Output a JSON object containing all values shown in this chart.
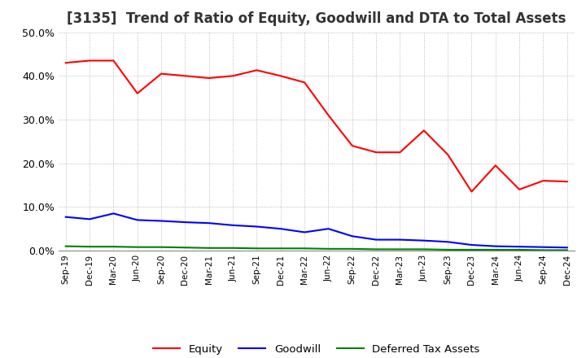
{
  "title": "[3135]  Trend of Ratio of Equity, Goodwill and DTA to Total Assets",
  "x_labels": [
    "Sep-19",
    "Dec-19",
    "Mar-20",
    "Jun-20",
    "Sep-20",
    "Dec-20",
    "Mar-21",
    "Jun-21",
    "Sep-21",
    "Dec-21",
    "Mar-22",
    "Jun-22",
    "Sep-22",
    "Dec-22",
    "Mar-23",
    "Jun-23",
    "Sep-23",
    "Dec-23",
    "Mar-24",
    "Jun-24",
    "Sep-24",
    "Dec-24"
  ],
  "equity": [
    0.43,
    0.435,
    0.435,
    0.36,
    0.405,
    0.4,
    0.395,
    0.4,
    0.413,
    0.4,
    0.385,
    0.31,
    0.24,
    0.225,
    0.225,
    0.275,
    0.22,
    0.135,
    0.195,
    0.14,
    0.16,
    0.158
  ],
  "goodwill": [
    0.077,
    0.072,
    0.085,
    0.07,
    0.068,
    0.065,
    0.063,
    0.058,
    0.055,
    0.05,
    0.042,
    0.05,
    0.033,
    0.025,
    0.025,
    0.023,
    0.02,
    0.013,
    0.01,
    0.009,
    0.008,
    0.007
  ],
  "dta": [
    0.01,
    0.009,
    0.009,
    0.008,
    0.008,
    0.007,
    0.006,
    0.006,
    0.005,
    0.005,
    0.005,
    0.004,
    0.004,
    0.003,
    0.003,
    0.003,
    0.002,
    0.002,
    0.002,
    0.002,
    0.001,
    0.001
  ],
  "equity_color": "#ff0000",
  "goodwill_color": "#0000ff",
  "dta_color": "#008000",
  "ylim": [
    0.0,
    0.5
  ],
  "yticks": [
    0.0,
    0.1,
    0.2,
    0.3,
    0.4,
    0.5
  ],
  "background_color": "#ffffff",
  "grid_color": "#aaaaaa",
  "title_fontsize": 12,
  "legend_labels": [
    "Equity",
    "Goodwill",
    "Deferred Tax Assets"
  ]
}
